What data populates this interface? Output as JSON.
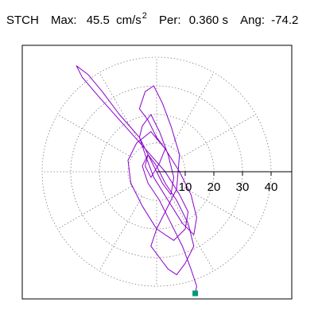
{
  "header": {
    "station": "STCH",
    "max_label": "Max:",
    "max_value": "45.5",
    "max_unit": "cm/s",
    "max_unit_exp": "2",
    "per_label": "Per:",
    "per_value": "0.360 s",
    "ang_label": "Ang:",
    "ang_value": "-74.2"
  },
  "colors": {
    "trace": "#8800cc",
    "grid": "#808080",
    "axis": "#000000",
    "marker": "#009977"
  },
  "chart_data": {
    "type": "scatter",
    "subtype": "polar particle-motion hodogram",
    "title": "",
    "xlabel": "",
    "ylabel": "",
    "radial_ticks": [
      10,
      20,
      30,
      40
    ],
    "radial_tick_labels": [
      "10",
      "20",
      "30",
      "40"
    ],
    "radial_max": 40,
    "grid": "dotted concentric circles every 10 with radial spokes every 30 degrees",
    "trace_color": "#8800cc",
    "peak_marker": {
      "x": 13.5,
      "y": -42.5
    },
    "series": [
      {
        "description": "Horizontal acceleration particle motion (approximate, digitized)",
        "x": [
          0,
          -6,
          -13,
          -19,
          -24,
          -28,
          -26,
          -20,
          -12,
          -4,
          3,
          8,
          11,
          10,
          6,
          0,
          -5,
          -9,
          -10,
          -7,
          -2,
          3,
          8,
          12,
          14,
          13,
          9,
          4,
          -1,
          -4,
          -6,
          -5,
          -2,
          1,
          4,
          6,
          5,
          2,
          -1,
          -3,
          -4,
          -2,
          1,
          3,
          0,
          -3,
          -6,
          -4,
          -1,
          2,
          5,
          8,
          7,
          3,
          0,
          -2,
          1,
          4,
          7,
          10,
          13,
          11,
          7,
          3,
          0,
          -3,
          -5,
          -3,
          1,
          5,
          9,
          12,
          14,
          13.5
        ],
        "y": [
          0,
          12,
          20,
          28,
          34,
          37,
          33,
          26,
          17,
          8,
          0,
          -8,
          -14,
          -20,
          -24,
          -20,
          -12,
          -4,
          4,
          10,
          14,
          8,
          0,
          -8,
          -16,
          -22,
          -18,
          -10,
          -2,
          6,
          12,
          16,
          20,
          14,
          6,
          -2,
          -8,
          -4,
          2,
          6,
          2,
          -2,
          3,
          8,
          12,
          18,
          22,
          28,
          30,
          24,
          16,
          6,
          -6,
          -14,
          -20,
          -26,
          -30,
          -34,
          -36,
          -32,
          -26,
          -18,
          -10,
          -4,
          2,
          6,
          2,
          -4,
          -10,
          -18,
          -26,
          -34,
          -40,
          -42.5
        ]
      }
    ]
  }
}
